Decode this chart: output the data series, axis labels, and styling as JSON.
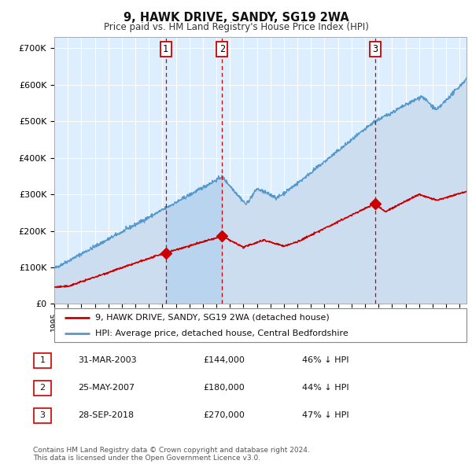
{
  "title": "9, HAWK DRIVE, SANDY, SG19 2WA",
  "subtitle": "Price paid vs. HM Land Registry's House Price Index (HPI)",
  "background_color": "#ffffff",
  "plot_bg_color": "#ddeeff",
  "grid_color": "#ffffff",
  "hpi_line_color": "#5599cc",
  "hpi_fill_color": "#ccddf0",
  "price_color": "#cc0000",
  "vline_color": "#cc0000",
  "sale_points": [
    {
      "date_num": 2003.25,
      "price": 144000,
      "label": "1"
    },
    {
      "date_num": 2007.42,
      "price": 180000,
      "label": "2"
    },
    {
      "date_num": 2018.75,
      "price": 270000,
      "label": "3"
    }
  ],
  "vline_dates": [
    2003.25,
    2007.42,
    2018.75
  ],
  "shade_pairs": [
    [
      2003.25,
      2007.42
    ]
  ],
  "table_rows": [
    [
      "1",
      "31-MAR-2003",
      "£144,000",
      "46% ↓ HPI"
    ],
    [
      "2",
      "25-MAY-2007",
      "£180,000",
      "44% ↓ HPI"
    ],
    [
      "3",
      "28-SEP-2018",
      "£270,000",
      "47% ↓ HPI"
    ]
  ],
  "footer": "Contains HM Land Registry data © Crown copyright and database right 2024.\nThis data is licensed under the Open Government Licence v3.0.",
  "legend_house": "9, HAWK DRIVE, SANDY, SG19 2WA (detached house)",
  "legend_hpi": "HPI: Average price, detached house, Central Bedfordshire",
  "xmin": 1995.0,
  "xmax": 2025.5,
  "ymin": 0,
  "ymax": 730000,
  "yticks": [
    0,
    100000,
    200000,
    300000,
    400000,
    500000,
    600000,
    700000
  ],
  "ytick_labels": [
    "£0",
    "£100K",
    "£200K",
    "£300K",
    "£400K",
    "£500K",
    "£600K",
    "£700K"
  ]
}
